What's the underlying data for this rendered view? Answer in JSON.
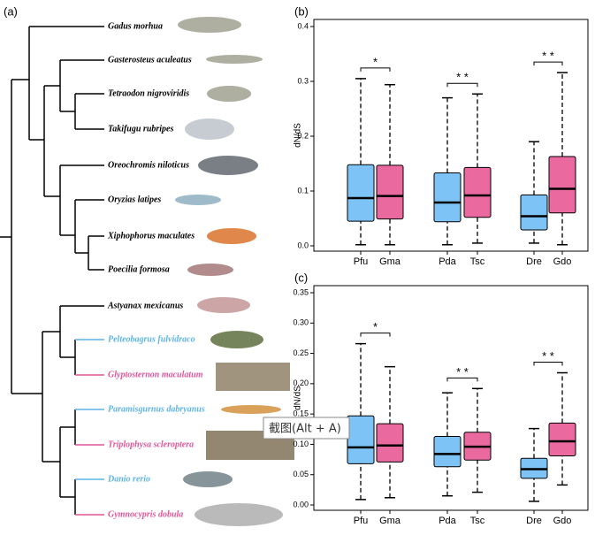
{
  "tree": {
    "label": "(a)",
    "leaves": [
      {
        "name": "Gadus morhua",
        "color": "#000000"
      },
      {
        "name": "Gasterosteus aculeatus",
        "color": "#000000"
      },
      {
        "name": "Tetraodon nigroviridis",
        "color": "#000000"
      },
      {
        "name": "Takifugu rubripes",
        "color": "#000000"
      },
      {
        "name": "Oreochromis niloticus",
        "color": "#000000"
      },
      {
        "name": "Oryzias latipes",
        "color": "#000000"
      },
      {
        "name": "Xiphophorus maculates",
        "color": "#000000"
      },
      {
        "name": "Poecilia formosa",
        "color": "#000000"
      },
      {
        "name": "Astyanax mexicanus",
        "color": "#000000"
      },
      {
        "name": "Pelteobagrus fulvidraco",
        "color": "#5fb4e6"
      },
      {
        "name": "Glyptosternon maculatum",
        "color": "#e0579a"
      },
      {
        "name": "Paramisgurnus dabryanus",
        "color": "#5fb4e6"
      },
      {
        "name": "Triplophysa scleroptera",
        "color": "#e0579a"
      },
      {
        "name": "Danio rerio",
        "color": "#5fb4e6"
      },
      {
        "name": "Gymnocypris dobula",
        "color": "#e0579a"
      }
    ]
  },
  "tooltip": "截图(Alt + A)",
  "chart_data": [
    {
      "type": "box",
      "label": "(b)",
      "ylabel": "dN/dS",
      "categories": [
        "Pfu",
        "Gma",
        "Pda",
        "Tsc",
        "Dre",
        "Gdo"
      ],
      "colors": [
        "#7ec3f5",
        "#ea6aa0",
        "#7ec3f5",
        "#ea6aa0",
        "#7ec3f5",
        "#ea6aa0"
      ],
      "boxes": [
        {
          "whislo": 0.002,
          "q1": 0.045,
          "med": 0.087,
          "q3": 0.148,
          "whishi": 0.305
        },
        {
          "whislo": 0.002,
          "q1": 0.049,
          "med": 0.091,
          "q3": 0.147,
          "whishi": 0.294
        },
        {
          "whislo": 0.002,
          "q1": 0.044,
          "med": 0.079,
          "q3": 0.133,
          "whishi": 0.27
        },
        {
          "whislo": 0.005,
          "q1": 0.052,
          "med": 0.092,
          "q3": 0.143,
          "whishi": 0.277
        },
        {
          "whislo": 0.005,
          "q1": 0.029,
          "med": 0.054,
          "q3": 0.093,
          "whishi": 0.19
        },
        {
          "whislo": 0.002,
          "q1": 0.06,
          "med": 0.104,
          "q3": 0.163,
          "whishi": 0.316
        }
      ],
      "annotations": [
        "*",
        "* *",
        "* *"
      ],
      "ylim": [
        0,
        0.4
      ],
      "yticks": [
        {
          "value": 0,
          "label": "0.0"
        },
        0.1,
        0.2,
        0.3,
        0.4
      ]
    },
    {
      "type": "box",
      "label": "(c)",
      "ylabel": "dN/dS",
      "categories": [
        "Pfu",
        "Gma",
        "Pda",
        "Tsc",
        "Dre",
        "Gdo"
      ],
      "colors": [
        "#7ec3f5",
        "#ea6aa0",
        "#7ec3f5",
        "#ea6aa0",
        "#7ec3f5",
        "#ea6aa0"
      ],
      "boxes": [
        {
          "whislo": 0.009,
          "q1": 0.068,
          "med": 0.095,
          "q3": 0.147,
          "whishi": 0.266
        },
        {
          "whislo": 0.012,
          "q1": 0.071,
          "med": 0.098,
          "q3": 0.134,
          "whishi": 0.228
        },
        {
          "whislo": 0.015,
          "q1": 0.063,
          "med": 0.084,
          "q3": 0.113,
          "whishi": 0.185
        },
        {
          "whislo": 0.021,
          "q1": 0.074,
          "med": 0.096,
          "q3": 0.12,
          "whishi": 0.192
        },
        {
          "whislo": 0.006,
          "q1": 0.044,
          "med": 0.059,
          "q3": 0.077,
          "whishi": 0.126
        },
        {
          "whislo": 0.033,
          "q1": 0.081,
          "med": 0.105,
          "q3": 0.135,
          "whishi": 0.218
        }
      ],
      "annotations": [
        "*",
        "* *",
        "* *"
      ],
      "ylim": [
        0,
        0.35
      ],
      "yticks": [
        {
          "value": 0,
          "label": "0.00"
        },
        0.05,
        {
          "value": 0.1,
          "label": "0.10"
        },
        0.15,
        {
          "value": 0.2,
          "label": "0.20"
        },
        0.25,
        {
          "value": 0.3,
          "label": "0.30"
        },
        0.35
      ]
    }
  ]
}
